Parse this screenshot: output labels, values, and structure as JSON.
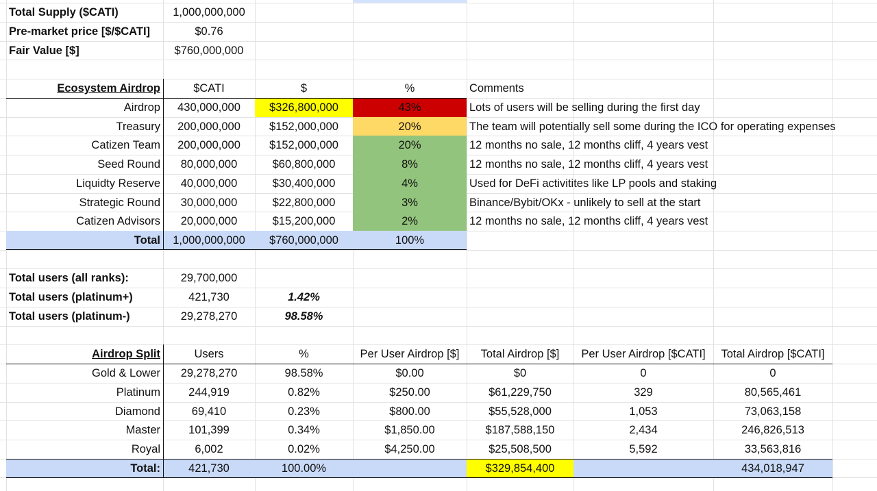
{
  "colors": {
    "yellow": "#ffff00",
    "red": "#cc0000",
    "amber": "#ffd966",
    "green": "#93c47d",
    "blue_total": "#c9daf8"
  },
  "summary": [
    {
      "label": "Total Supply ($CATI)",
      "value": "1,000,000,000"
    },
    {
      "label": "Pre-market price [$/$CATI]",
      "value": "$0.76"
    },
    {
      "label": "Fair Value [$]",
      "value": "$760,000,000"
    }
  ],
  "ecosystem": {
    "headers": [
      "Ecosystem Airdrop",
      "$CATI",
      "$",
      "%",
      "Comments"
    ],
    "rows": [
      {
        "name": "Airdrop",
        "cati": "430,000,000",
        "usd": "$326,800,000",
        "pct": "43%",
        "comment": "Lots of users will be selling during the first day"
      },
      {
        "name": "Treasury",
        "cati": "200,000,000",
        "usd": "$152,000,000",
        "pct": "20%",
        "comment": "The team will potentially sell some during the ICO for operating expenses"
      },
      {
        "name": "Catizen Team",
        "cati": "200,000,000",
        "usd": "$152,000,000",
        "pct": "20%",
        "comment": "12 months no sale, 12 months cliff, 4 years vest"
      },
      {
        "name": "Seed Round",
        "cati": "80,000,000",
        "usd": "$60,800,000",
        "pct": "8%",
        "comment": "12 months no sale, 12 months cliff, 4 years vest"
      },
      {
        "name": "Liquidty Reserve",
        "cati": "40,000,000",
        "usd": "$30,400,000",
        "pct": "4%",
        "comment": "Used for DeFi activitites like LP pools and staking"
      },
      {
        "name": "Strategic Round",
        "cati": "30,000,000",
        "usd": "$22,800,000",
        "pct": "3%",
        "comment": "Binance/Bybit/OKx - unlikely to sell at the start"
      },
      {
        "name": "Catizen Advisors",
        "cati": "20,000,000",
        "usd": "$15,200,000",
        "pct": "2%",
        "comment": "12 months no sale, 12 months cliff, 4 years vest"
      }
    ],
    "total": {
      "label": "Total",
      "cati": "1,000,000,000",
      "usd": "$760,000,000",
      "pct": "100%"
    }
  },
  "users": [
    {
      "label": "Total users (all ranks):",
      "value": "29,700,000",
      "pct": ""
    },
    {
      "label": "Total users (platinum+)",
      "value": "421,730",
      "pct": "1.42%"
    },
    {
      "label": "Total users (platinum-)",
      "value": "29,278,270",
      "pct": "98.58%"
    }
  ],
  "split": {
    "headers": [
      "Airdrop Split",
      "Users",
      "%",
      "Per User Airdrop [$]",
      "Total Airdrop [$]",
      "Per User Airdrop [$CATI]",
      "Total Airdrop [$CATI]"
    ],
    "rows": [
      {
        "tier": "Gold & Lower",
        "users": "29,278,270",
        "pct": "98.58%",
        "per_usd": "$0.00",
        "total_usd": "$0",
        "per_cati": "0",
        "total_cati": "0"
      },
      {
        "tier": "Platinum",
        "users": "244,919",
        "pct": "0.82%",
        "per_usd": "$250.00",
        "total_usd": "$61,229,750",
        "per_cati": "329",
        "total_cati": "80,565,461"
      },
      {
        "tier": "Diamond",
        "users": "69,410",
        "pct": "0.23%",
        "per_usd": "$800.00",
        "total_usd": "$55,528,000",
        "per_cati": "1,053",
        "total_cati": "73,063,158"
      },
      {
        "tier": "Master",
        "users": "101,399",
        "pct": "0.34%",
        "per_usd": "$1,850.00",
        "total_usd": "$187,588,150",
        "per_cati": "2,434",
        "total_cati": "246,826,513"
      },
      {
        "tier": "Royal",
        "users": "6,002",
        "pct": "0.02%",
        "per_usd": "$4,250.00",
        "total_usd": "$25,508,500",
        "per_cati": "5,592",
        "total_cati": "33,563,816"
      }
    ],
    "total": {
      "label": "Total:",
      "users": "421,730",
      "pct": "100.00%",
      "total_usd": "$329,854,400",
      "total_cati": "434,018,947"
    }
  }
}
